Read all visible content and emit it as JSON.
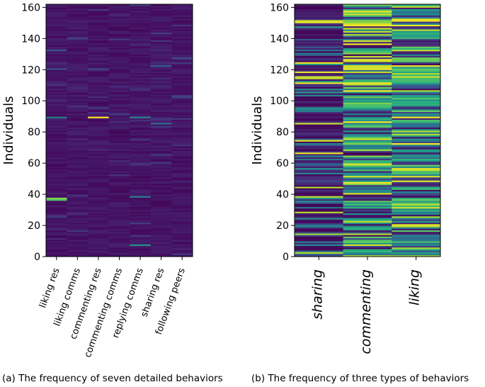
{
  "chart_data": [
    {
      "type": "heatmap",
      "title": "",
      "ylabel": "Individuals",
      "xlabel": "",
      "categories": [
        "liking res",
        "liking comms",
        "commenting res",
        "commenting comms",
        "replying comms",
        "sharing res",
        "following peers"
      ],
      "y_ticks": [
        0,
        20,
        40,
        60,
        80,
        100,
        120,
        140,
        160
      ],
      "ylim": [
        0,
        162
      ],
      "rows": 162,
      "colormap": "viridis",
      "highlights": [
        {
          "category": "commenting res",
          "row": 89,
          "value": 1.0
        },
        {
          "category": "liking res",
          "row": 37,
          "value": 0.8
        },
        {
          "category": "liking res",
          "row": 36,
          "value": 0.72
        },
        {
          "category": "liking res",
          "row": 89,
          "value": 0.45
        },
        {
          "category": "replying comms",
          "row": 89,
          "value": 0.45
        },
        {
          "category": "replying comms",
          "row": 38,
          "value": 0.42
        },
        {
          "category": "replying comms",
          "row": 7,
          "value": 0.5
        },
        {
          "category": "sharing res",
          "row": 122,
          "value": 0.3
        },
        {
          "category": "sharing res",
          "row": 85,
          "value": 0.38
        },
        {
          "category": "liking res",
          "row": 132,
          "value": 0.28
        },
        {
          "category": "liking res",
          "row": 120,
          "value": 0.25
        },
        {
          "category": "commenting res",
          "row": 120,
          "value": 0.22
        }
      ],
      "caption": "(a) The frequency of seven detailed behaviors"
    },
    {
      "type": "heatmap",
      "title": "",
      "ylabel": "Individuals",
      "xlabel": "",
      "categories": [
        "sharing",
        "commenting",
        "liking"
      ],
      "y_ticks": [
        0,
        20,
        40,
        60,
        80,
        100,
        120,
        140,
        160
      ],
      "ylim": [
        0,
        162
      ],
      "rows": 162,
      "colormap": "viridis",
      "caption": "(b) The frequency of three types of behaviors"
    }
  ],
  "colors": {
    "viridis_low": "#440154",
    "viridis_mid": "#21918c",
    "viridis_high": "#fde725"
  }
}
